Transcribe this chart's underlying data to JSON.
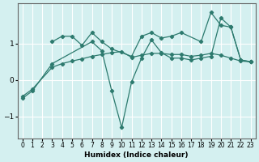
{
  "xlabel": "Humidex (Indice chaleur)",
  "bg_color": "#d4f0f0",
  "grid_color": "#ffffff",
  "line_color": "#2d7a6e",
  "xlim": [
    -0.5,
    23.5
  ],
  "ylim": [
    -1.6,
    2.1
  ],
  "yticks": [
    -1,
    0,
    1
  ],
  "xticks": [
    0,
    1,
    2,
    3,
    4,
    5,
    6,
    7,
    8,
    9,
    10,
    11,
    12,
    13,
    14,
    15,
    16,
    17,
    18,
    19,
    20,
    21,
    22,
    23
  ],
  "line1_x": [
    3,
    4,
    5,
    6,
    7,
    8,
    9,
    11,
    12,
    13,
    14,
    15,
    16,
    18,
    19,
    20,
    21,
    22,
    23
  ],
  "line1_y": [
    1.05,
    1.2,
    1.2,
    0.95,
    1.3,
    1.05,
    0.85,
    0.65,
    1.2,
    1.3,
    1.15,
    1.2,
    1.3,
    1.05,
    1.85,
    1.5,
    1.45,
    0.55,
    0.5
  ],
  "line2_x": [
    0,
    1,
    3,
    4,
    5,
    6,
    7,
    8,
    9,
    10,
    11,
    12,
    13,
    14,
    15,
    16,
    17,
    18,
    19,
    20,
    21,
    22,
    23
  ],
  "line2_y": [
    -0.45,
    -0.25,
    0.35,
    0.45,
    0.52,
    0.58,
    0.65,
    0.7,
    0.75,
    0.78,
    0.62,
    0.68,
    0.73,
    0.73,
    0.7,
    0.7,
    0.65,
    0.68,
    0.73,
    0.68,
    0.6,
    0.52,
    0.5
  ],
  "line3_x": [
    0,
    1,
    3,
    7,
    8,
    9,
    10,
    11,
    12,
    13,
    14,
    15,
    16,
    17,
    18,
    19,
    20,
    21,
    22,
    23
  ],
  "line3_y": [
    -0.5,
    -0.3,
    0.45,
    1.05,
    0.8,
    -0.3,
    -1.3,
    -0.05,
    0.6,
    1.1,
    0.75,
    0.6,
    0.6,
    0.55,
    0.6,
    0.65,
    1.7,
    1.45,
    0.55,
    0.5
  ]
}
